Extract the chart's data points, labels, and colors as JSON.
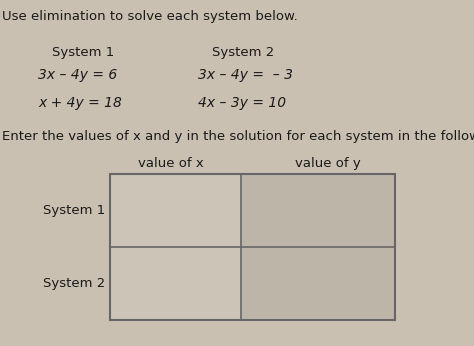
{
  "title_text": "Use elimination to solve each system below.",
  "system1_label": "System 1",
  "system2_label": "System 2",
  "system1_eq1": "3x – 4y = 6",
  "system1_eq2": "x + 4y = 18",
  "system2_eq1": "3x – 4y =  – 3",
  "system2_eq2": "4x – 3y = 10",
  "table_instruction": "Enter the values of x and y in the solution for each system in the following table.",
  "col1_header": "value of x",
  "col2_header": "value of y",
  "row1_label": "System 1",
  "row2_label": "System 2",
  "bg_color": "#c9c0b2",
  "text_color": "#1a1a1a",
  "table_fill_left": "#ccc4b6",
  "table_fill_right": "#bdb5a8",
  "table_border": "#666666",
  "font_size_title": 9.5,
  "font_size_header": 9.5,
  "font_size_eq": 10,
  "font_size_table": 9.5
}
